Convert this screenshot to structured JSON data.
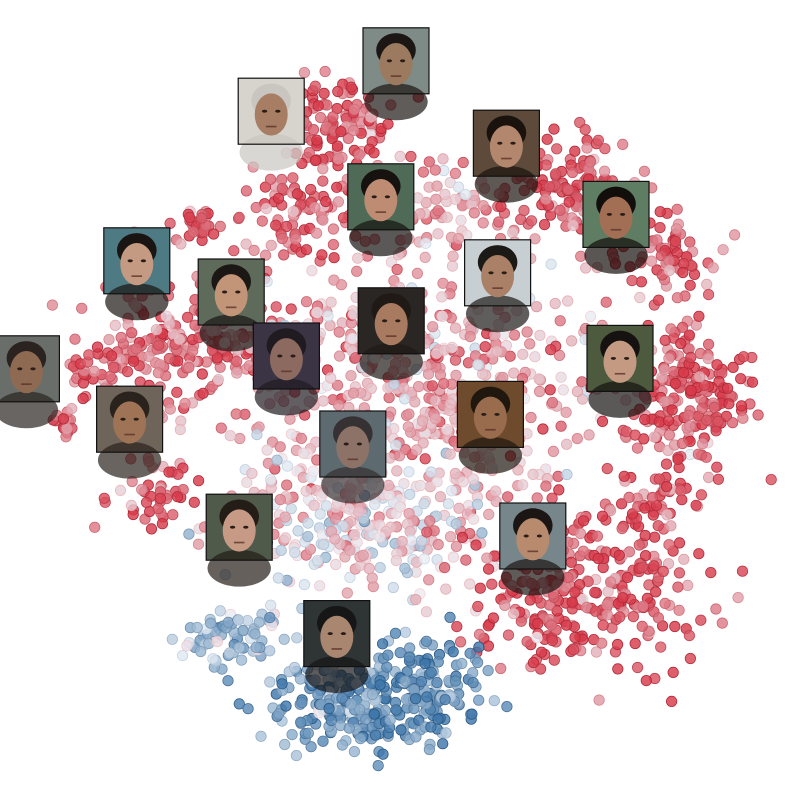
{
  "chart_data": {
    "type": "scatter",
    "title": "",
    "xlabel": "",
    "ylabel": "",
    "grid": false,
    "legend": "none",
    "xlim": [
      0,
      100
    ],
    "ylim": [
      0,
      100
    ],
    "colors": {
      "warm_dark": "#d83a4a",
      "warm_light": "#f7d5d8",
      "neutral": "#e9eef4",
      "cool_light": "#cddbea",
      "cool_dark": "#3f78ab",
      "frame": "#111111"
    },
    "clusters": [
      {
        "name": "top-left-upper",
        "cx": 42,
        "cy": 84,
        "sx": 3.5,
        "sy": 3.0,
        "n": 110,
        "tone": 0.85
      },
      {
        "name": "top-left-mid",
        "cx": 38,
        "cy": 73,
        "sx": 3.5,
        "sy": 3.0,
        "n": 80,
        "tone": 0.8
      },
      {
        "name": "top-right-upper",
        "cx": 71,
        "cy": 77,
        "sx": 4.0,
        "sy": 3.0,
        "n": 120,
        "tone": 0.8
      },
      {
        "name": "top-center",
        "cx": 57,
        "cy": 74,
        "sx": 5.0,
        "sy": 3.5,
        "n": 80,
        "tone": 0.45
      },
      {
        "name": "small-left",
        "cx": 25,
        "cy": 72,
        "sx": 1.3,
        "sy": 1.0,
        "n": 28,
        "tone": 0.85
      },
      {
        "name": "far-right-upper",
        "cx": 84,
        "cy": 68,
        "sx": 3.0,
        "sy": 2.5,
        "n": 70,
        "tone": 0.8
      },
      {
        "name": "left-mass",
        "cx": 24,
        "cy": 57,
        "sx": 6.0,
        "sy": 4.0,
        "n": 200,
        "tone": 0.7
      },
      {
        "name": "center-mass",
        "cx": 52,
        "cy": 53,
        "sx": 13.0,
        "sy": 8.0,
        "n": 560,
        "tone": 0.4
      },
      {
        "name": "right-mass",
        "cx": 86,
        "cy": 50,
        "sx": 4.0,
        "sy": 5.0,
        "n": 210,
        "tone": 0.85
      },
      {
        "name": "far-left",
        "cx": 8,
        "cy": 47,
        "sx": 0.8,
        "sy": 1.0,
        "n": 16,
        "tone": 0.9
      },
      {
        "name": "left-lower",
        "cx": 20,
        "cy": 38,
        "sx": 3.0,
        "sy": 2.0,
        "n": 40,
        "tone": 0.85
      },
      {
        "name": "lower-center",
        "cx": 46,
        "cy": 35,
        "sx": 9.0,
        "sy": 5.0,
        "n": 320,
        "tone": 0.15
      },
      {
        "name": "lower-right",
        "cx": 73,
        "cy": 26,
        "sx": 7.0,
        "sy": 5.0,
        "n": 300,
        "tone": 0.85
      },
      {
        "name": "bottom-left-blue",
        "cx": 29,
        "cy": 20,
        "sx": 3.5,
        "sy": 2.0,
        "n": 70,
        "tone": -0.4
      },
      {
        "name": "bottom-center-blue",
        "cx": 43,
        "cy": 12,
        "sx": 5.0,
        "sy": 3.0,
        "n": 190,
        "tone": -0.7
      },
      {
        "name": "bottom-right-blue",
        "cx": 54,
        "cy": 14,
        "sx": 3.5,
        "sy": 3.5,
        "n": 140,
        "tone": -0.75
      },
      {
        "name": "right-lower-edge",
        "cx": 81,
        "cy": 36,
        "sx": 3.0,
        "sy": 2.5,
        "n": 50,
        "tone": 0.8
      },
      {
        "name": "left-middle-strip",
        "cx": 13,
        "cy": 54,
        "sx": 3.0,
        "sy": 2.0,
        "n": 40,
        "tone": 0.85
      }
    ],
    "thumbnails": [
      {
        "name": "face-1",
        "x": 49.5,
        "y": 92.4,
        "skin": "#9c7a60",
        "bg": "#7f8b86",
        "hair": "#1c1714"
      },
      {
        "name": "face-2",
        "x": 33.9,
        "y": 86.1,
        "skin": "#a77e64",
        "bg": "#d7d4cd",
        "hair": "#c9c6c1"
      },
      {
        "name": "face-3",
        "x": 63.3,
        "y": 82.1,
        "skin": "#b3876d",
        "bg": "#5e4a3a",
        "hair": "#19120d"
      },
      {
        "name": "face-4",
        "x": 47.6,
        "y": 75.4,
        "skin": "#bd8c73",
        "bg": "#4f6b58",
        "hair": "#16120f"
      },
      {
        "name": "face-5",
        "x": 77.0,
        "y": 73.2,
        "skin": "#a26f55",
        "bg": "#5f7d63",
        "hair": "#120e0c"
      },
      {
        "name": "face-6",
        "x": 17.1,
        "y": 67.4,
        "skin": "#c59a82",
        "bg": "#4d7a83",
        "hair": "#1a1512"
      },
      {
        "name": "face-7",
        "x": 62.2,
        "y": 65.9,
        "skin": "#aa8066",
        "bg": "#c8cfd2",
        "hair": "#1c1a17"
      },
      {
        "name": "face-8",
        "x": 28.9,
        "y": 63.5,
        "skin": "#c29478",
        "bg": "#5e6a5a",
        "hair": "#1b1714"
      },
      {
        "name": "face-9",
        "x": 48.9,
        "y": 59.9,
        "skin": "#a87a5f",
        "bg": "#2a2623",
        "hair": "#201a16"
      },
      {
        "name": "face-10",
        "x": 35.8,
        "y": 55.5,
        "skin": "#8c6a5f",
        "bg": "#3a3444",
        "hair": "#201b21"
      },
      {
        "name": "face-11",
        "x": 77.5,
        "y": 55.2,
        "skin": "#c49a82",
        "bg": "#4e5a3e",
        "hair": "#151211"
      },
      {
        "name": "face-12",
        "x": 3.3,
        "y": 53.9,
        "skin": "#8f6a52",
        "bg": "#6a6e6a",
        "hair": "#2a2320"
      },
      {
        "name": "face-13",
        "x": 61.3,
        "y": 48.2,
        "skin": "#9a6c4e",
        "bg": "#6d4b2c",
        "hair": "#20170f"
      },
      {
        "name": "face-14",
        "x": 16.2,
        "y": 47.6,
        "skin": "#9f7356",
        "bg": "#6e6459",
        "hair": "#2a221c"
      },
      {
        "name": "face-15",
        "x": 44.1,
        "y": 44.5,
        "skin": "#8d7367",
        "bg": "#5d6a70",
        "hair": "#363132"
      },
      {
        "name": "face-16",
        "x": 29.9,
        "y": 34.1,
        "skin": "#c79a85",
        "bg": "#4f5a4a",
        "hair": "#231c17"
      },
      {
        "name": "face-17",
        "x": 66.6,
        "y": 33.0,
        "skin": "#b88b6f",
        "bg": "#76868a",
        "hair": "#1b1613"
      },
      {
        "name": "face-18",
        "x": 42.1,
        "y": 20.8,
        "skin": "#a98670",
        "bg": "#2f3535",
        "hair": "#161616"
      }
    ]
  }
}
